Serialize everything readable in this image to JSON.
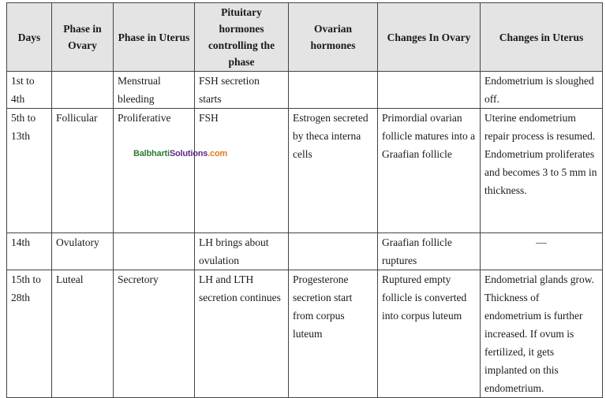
{
  "table": {
    "headers": [
      "Days",
      "Phase in Ovary",
      "Phase in Uterus",
      "Pituitary hormones controlling the phase",
      "Ovarian hormones",
      "Changes In Ovary",
      "Changes in Uterus"
    ],
    "rows": [
      [
        "1st to 4th",
        "",
        "Menstrual bleeding",
        "FSH secretion starts",
        "",
        "",
        "Endometrium is sloughed off."
      ],
      [
        "5th to 13th",
        "Follicular",
        "Proliferative",
        "FSH",
        "Estrogen secreted by theca interna cells",
        "Primordial ovarian follicle matures into a Graafian follicle",
        "Uterine endometrium repair process is resumed. Endometrium proliferates and becomes 3 to 5 mm in thickness."
      ],
      [
        "14th",
        "Ovulatory",
        "",
        "LH brings about ovulation",
        "",
        "Graafian follicle ruptures",
        "—"
      ],
      [
        "15th to 28th",
        "Luteal",
        "Secretory",
        "LH and LTH secretion continues",
        "Progesterone secretion start from corpus luteum",
        "Ruptured empty follicle is converted into corpus luteum",
        "Endometrial glands grow. Thickness of endometrium is further increased. If ovum is fertilized, it gets implanted on this endometrium."
      ]
    ]
  },
  "watermark": {
    "part1": "Balbharti",
    "part2": "Solutions",
    "part3": ".com",
    "colors": [
      "#2e7d32",
      "#5b2a86",
      "#e07b16"
    ]
  }
}
